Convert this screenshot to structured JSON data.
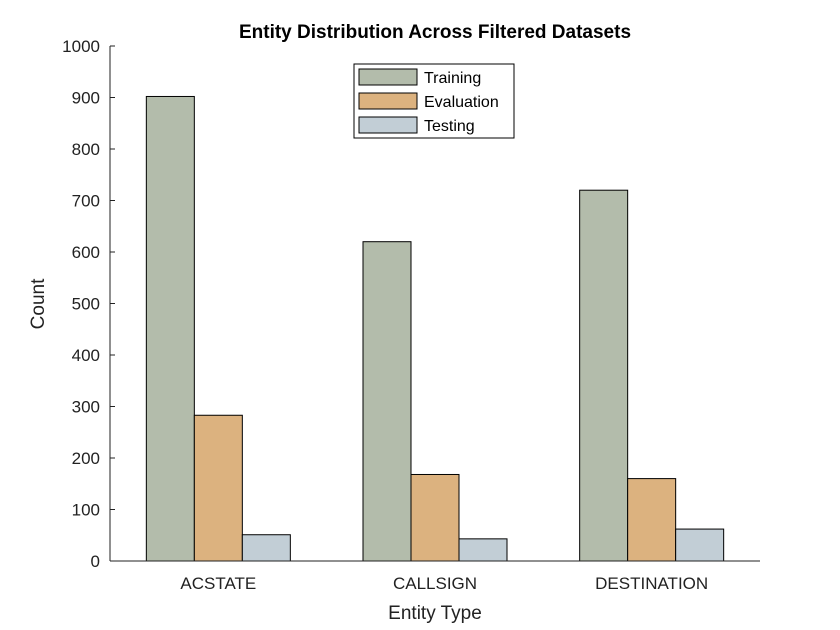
{
  "chart_data": {
    "type": "bar",
    "title": "Entity Distribution Across Filtered Datasets",
    "xlabel": "Entity Type",
    "ylabel": "Count",
    "ylim": [
      0,
      1000
    ],
    "yticks": [
      0,
      100,
      200,
      300,
      400,
      500,
      600,
      700,
      800,
      900,
      1000
    ],
    "categories": [
      "ACSTATE",
      "CALLSIGN",
      "DESTINATION"
    ],
    "series": [
      {
        "name": "Training",
        "color": "#b3bcab",
        "values": [
          902,
          620,
          720
        ]
      },
      {
        "name": "Evaluation",
        "color": "#dcb27f",
        "values": [
          283,
          168,
          160
        ]
      },
      {
        "name": "Testing",
        "color": "#c2ced6",
        "values": [
          51,
          43,
          62
        ]
      }
    ],
    "legend": "top-center",
    "grid": false
  }
}
